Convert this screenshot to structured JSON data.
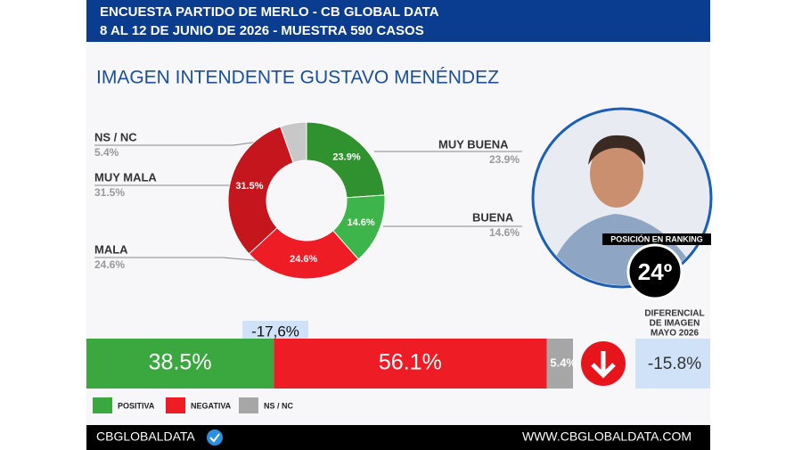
{
  "header": {
    "line1": "ENCUESTA PARTIDO DE MERLO - CB GLOBAL DATA",
    "line2": "8 AL 12 DE JUNIO DE 2026 - MUESTRA 590 CASOS"
  },
  "ranking": {
    "label": "POSICIÓN EN RANKING",
    "position": "24º"
  },
  "footer": {
    "brand": "CBGLOBALDATA",
    "url": "WWW.CBGLOBALDATA.COM"
  },
  "chart_data": [
    {
      "type": "donut",
      "title": "IMAGEN INTENDENTE  GUSTAVO MENÉNDEZ",
      "categories": [
        "MUY BUENA",
        "BUENA",
        "MALA",
        "MUY MALA",
        "NS / NC"
      ],
      "values": [
        23.9,
        14.6,
        24.6,
        31.5,
        5.4
      ],
      "value_labels": [
        "23.9%",
        "14.6%",
        "24.6%",
        "31.5%",
        "5.4%"
      ],
      "colors": [
        "#2f922f",
        "#3db54a",
        "#ee1c24",
        "#c4161c",
        "#c8c8c8"
      ]
    },
    {
      "type": "bar",
      "orientation": "horizontal",
      "stacked": true,
      "xlim": [
        0,
        100
      ],
      "series": [
        {
          "name": "POSITIVA",
          "color": "#3aa83f",
          "values": [
            38.5
          ],
          "value_labels": [
            "38.5%"
          ]
        },
        {
          "name": "NEGATIVA",
          "color": "#ee1c24",
          "values": [
            56.1
          ],
          "value_labels": [
            "56.1%"
          ]
        },
        {
          "name": "NS / NC",
          "color": "#a6a6a6",
          "values": [
            5.4
          ],
          "value_labels": [
            "5.4%"
          ]
        }
      ],
      "annotations": [
        {
          "text": "-17,6%"
        },
        {
          "title_lines": [
            "DIFERENCIAL",
            "DE IMAGEN",
            "MAYO 2026"
          ],
          "text": "-15.8%"
        }
      ]
    }
  ]
}
